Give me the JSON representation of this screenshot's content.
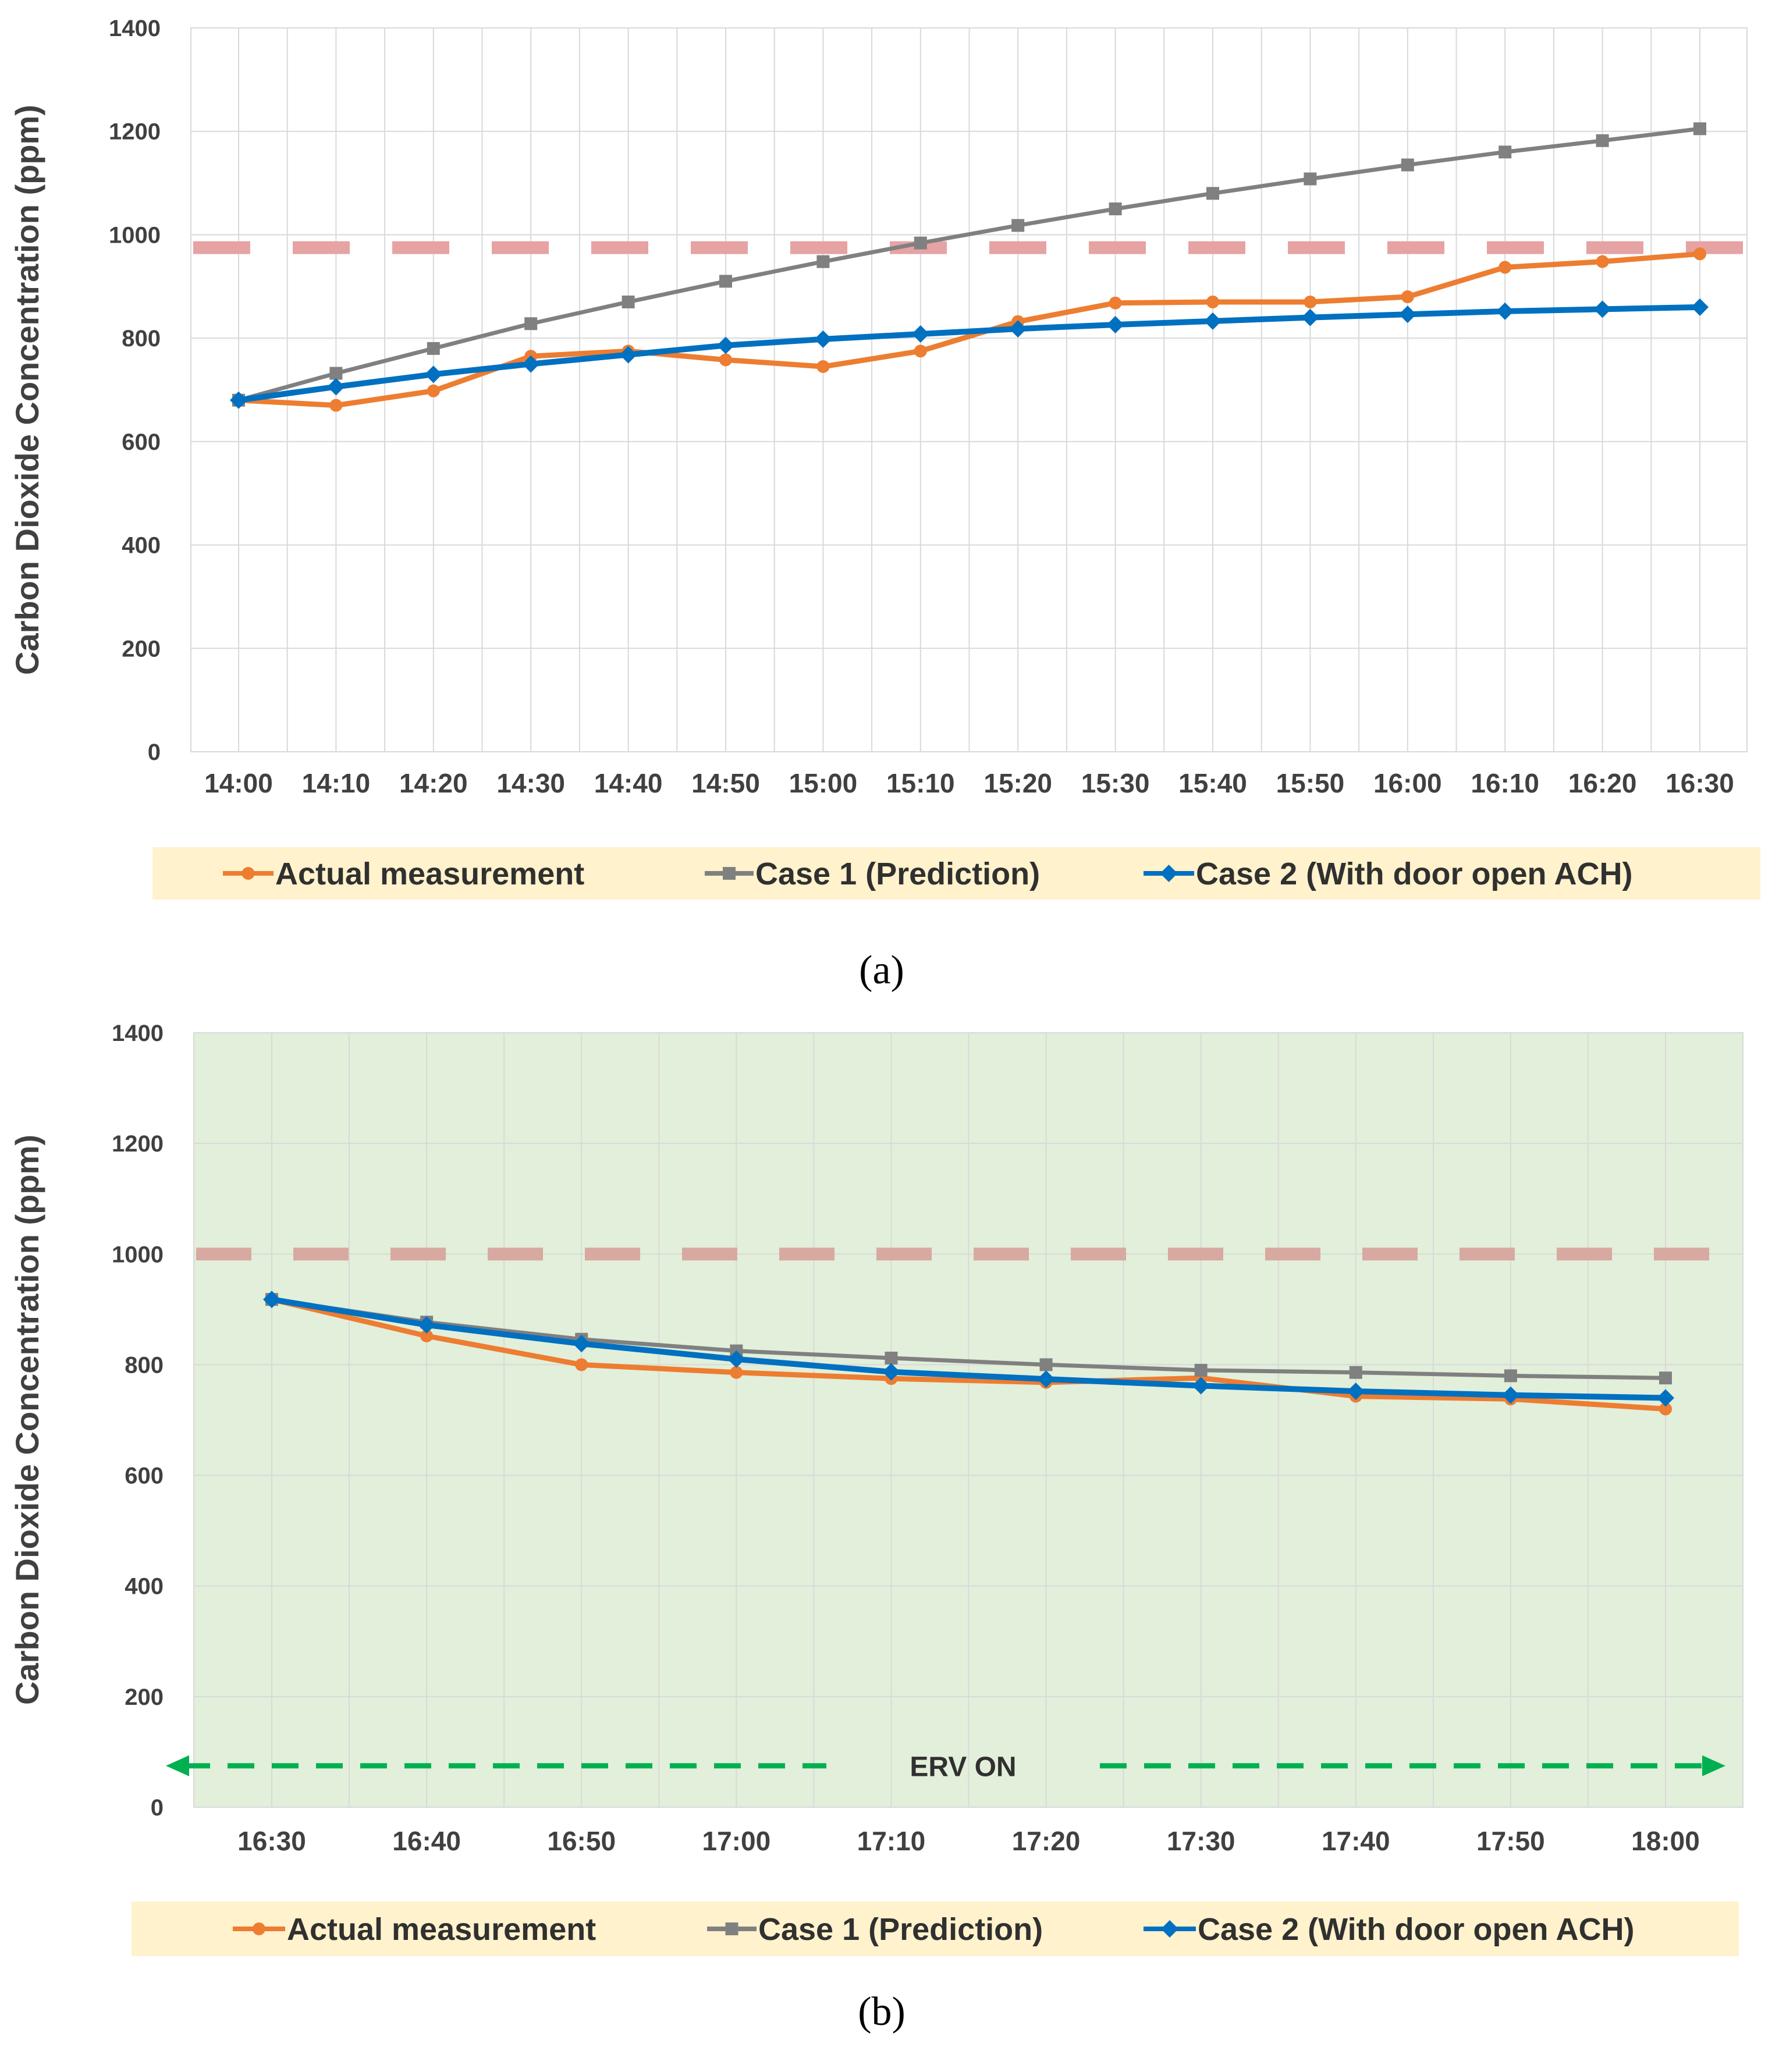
{
  "chart_data": [
    {
      "type": "line",
      "caption": "(a)",
      "title": "",
      "xlabel": "",
      "ylabel": "Carbon Dioxide Concentration (ppm)",
      "ylim": [
        0,
        1400
      ],
      "yticks": [
        0,
        200,
        400,
        600,
        800,
        1000,
        1200,
        1400
      ],
      "categories": [
        "14:00",
        "14:10",
        "14:20",
        "14:30",
        "14:40",
        "14:50",
        "15:00",
        "15:10",
        "15:20",
        "15:30",
        "15:40",
        "15:50",
        "16:00",
        "16:10",
        "16:20",
        "16:30"
      ],
      "series": [
        {
          "name": "Actual measurement",
          "color": "#ED7D31",
          "marker": "circle",
          "values": [
            680,
            670,
            698,
            765,
            775,
            758,
            745,
            775,
            832,
            868,
            870,
            870,
            880,
            937,
            948,
            963
          ]
        },
        {
          "name": "Case 1 (Prediction)",
          "color": "#808080",
          "marker": "square",
          "values": [
            680,
            732,
            780,
            828,
            870,
            910,
            948,
            984,
            1018,
            1050,
            1080,
            1108,
            1135,
            1160,
            1182,
            1205
          ]
        },
        {
          "name": "Case 2 (With door open ACH)",
          "color": "#0070C0",
          "marker": "diamond",
          "values": [
            680,
            706,
            730,
            750,
            768,
            786,
            798,
            808,
            818,
            826,
            833,
            840,
            846,
            852,
            856,
            860
          ]
        }
      ],
      "threshold": {
        "value": 975,
        "color": "#E6A3A3"
      },
      "plot_background": "#FFFFFF",
      "legend_background": "#FFF2CC",
      "legend_position": "bottom",
      "grid": true
    },
    {
      "type": "line",
      "caption": "(b)",
      "title": "",
      "xlabel": "",
      "ylabel": "Carbon Dioxide Concentration (ppm)",
      "ylim": [
        0,
        1400
      ],
      "yticks": [
        0,
        200,
        400,
        600,
        800,
        1000,
        1200,
        1400
      ],
      "categories": [
        "16:30",
        "16:40",
        "16:50",
        "17:00",
        "17:10",
        "17:20",
        "17:30",
        "17:40",
        "17:50",
        "18:00"
      ],
      "series": [
        {
          "name": "Actual measurement",
          "color": "#ED7D31",
          "marker": "circle",
          "values": [
            918,
            852,
            800,
            786,
            775,
            768,
            776,
            743,
            738,
            720
          ]
        },
        {
          "name": "Case 1 (Prediction)",
          "color": "#808080",
          "marker": "square",
          "values": [
            918,
            877,
            846,
            825,
            812,
            800,
            790,
            786,
            780,
            776
          ]
        },
        {
          "name": "Case 2 (With door open ACH)",
          "color": "#0070C0",
          "marker": "diamond",
          "values": [
            918,
            872,
            838,
            810,
            787,
            774,
            762,
            752,
            745,
            740
          ]
        }
      ],
      "threshold": {
        "value": 1000,
        "color": "#D8A9A0"
      },
      "annotation": {
        "label": "ERV ON",
        "value": 75,
        "color": "#00B050"
      },
      "plot_background": "#E2EFDA",
      "legend_background": "#FFF2CC",
      "legend_position": "bottom",
      "grid": true
    }
  ]
}
